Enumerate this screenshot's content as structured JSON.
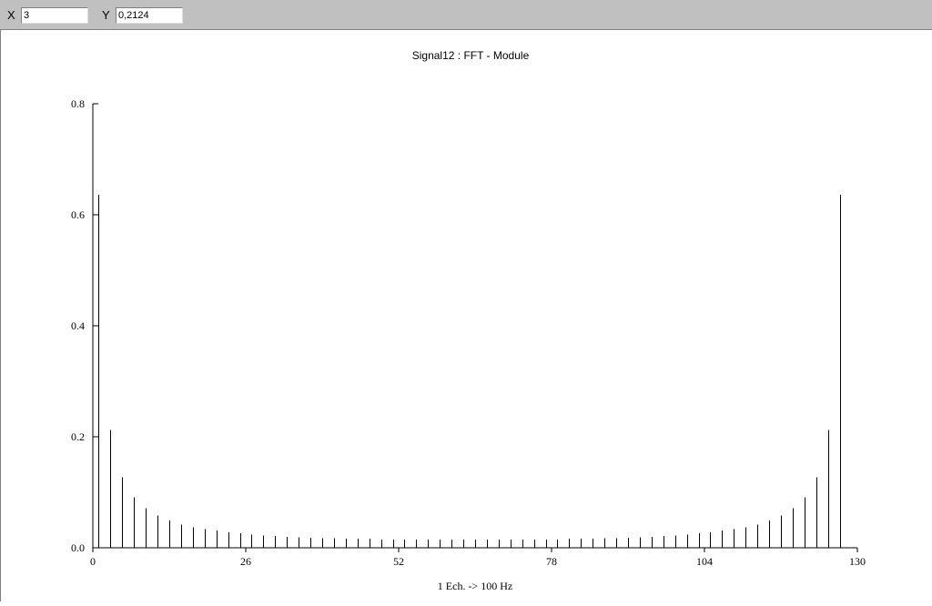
{
  "toolbar": {
    "x_label": "X",
    "x_value": "3",
    "y_label": "Y",
    "y_value": "0,2124"
  },
  "chart_data": {
    "type": "bar",
    "title": "Signal12 : FFT - Module",
    "xlabel": "1 Ech. -> 100 Hz",
    "ylabel": "",
    "xlim": [
      0,
      130
    ],
    "ylim": [
      0,
      0.8
    ],
    "x_ticks": [
      "0",
      "26",
      "52",
      "78",
      "104",
      "130"
    ],
    "y_ticks": [
      "0.0",
      "0.2",
      "0.4",
      "0.6",
      "0.8"
    ],
    "grid": false,
    "x": [
      1,
      3,
      5,
      7,
      9,
      11,
      13,
      15,
      17,
      19,
      21,
      23,
      25,
      27,
      29,
      31,
      33,
      35,
      37,
      39,
      41,
      43,
      45,
      47,
      49,
      51,
      53,
      55,
      57,
      59,
      61,
      63,
      65,
      67,
      69,
      71,
      73,
      75,
      77,
      79,
      81,
      83,
      85,
      87,
      89,
      91,
      93,
      95,
      97,
      99,
      101,
      103,
      105,
      107,
      109,
      111,
      113,
      115,
      117,
      119,
      121,
      123,
      125,
      127
    ],
    "values": [
      0.636,
      0.212,
      0.127,
      0.091,
      0.071,
      0.058,
      0.049,
      0.042,
      0.037,
      0.034,
      0.031,
      0.028,
      0.026,
      0.024,
      0.022,
      0.021,
      0.02,
      0.019,
      0.018,
      0.017,
      0.017,
      0.016,
      0.016,
      0.016,
      0.015,
      0.015,
      0.015,
      0.015,
      0.015,
      0.015,
      0.015,
      0.015,
      0.015,
      0.015,
      0.015,
      0.015,
      0.015,
      0.015,
      0.015,
      0.015,
      0.016,
      0.016,
      0.016,
      0.017,
      0.017,
      0.018,
      0.019,
      0.02,
      0.021,
      0.022,
      0.024,
      0.026,
      0.028,
      0.031,
      0.034,
      0.037,
      0.042,
      0.049,
      0.058,
      0.071,
      0.091,
      0.127,
      0.212,
      0.636
    ]
  }
}
